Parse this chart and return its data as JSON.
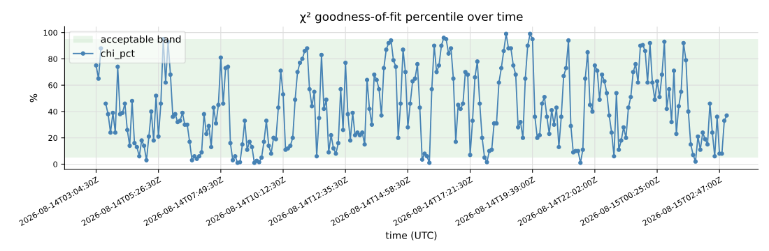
{
  "chart_data": {
    "type": "line",
    "title": "χ² goodness-of-fit percentile over time",
    "xlabel": "time (UTC)",
    "ylabel": "%",
    "categories": [
      "2026-08-14T03:04:30Z",
      null,
      null,
      null,
      null,
      null,
      null,
      null,
      null,
      null,
      null,
      null,
      null,
      null,
      null,
      null,
      null,
      null,
      null,
      null,
      null,
      null,
      null,
      null,
      null,
      null,
      "2026-08-14T05:26:30Z",
      null,
      null,
      null,
      null,
      null,
      null,
      null,
      null,
      null,
      null,
      null,
      null,
      null,
      null,
      null,
      null,
      null,
      null,
      null,
      null,
      null,
      null,
      null,
      null,
      null,
      "2026-08-14T07:49:30Z",
      null,
      null,
      null,
      null,
      null,
      null,
      null,
      null,
      null,
      null,
      null,
      null,
      null,
      null,
      null,
      null,
      null,
      null,
      null,
      null,
      null,
      null,
      null,
      null,
      null,
      "2026-08-14T10:12:30Z",
      null,
      null,
      null,
      null,
      null,
      null,
      null,
      null,
      null,
      null,
      null,
      null,
      null,
      null,
      null,
      null,
      null,
      null,
      null,
      null,
      null,
      null,
      null,
      null,
      null,
      "2026-08-14T12:35:30Z",
      null,
      null,
      null,
      null,
      null,
      null,
      null,
      null,
      null,
      null,
      null,
      null,
      null,
      null,
      null,
      null,
      null,
      null,
      null,
      null,
      null,
      null,
      null,
      null,
      null,
      "2026-08-14T14:58:30Z",
      null,
      null,
      null,
      null,
      null,
      null,
      null,
      null,
      null,
      null,
      null,
      null,
      null,
      null,
      null,
      null,
      null,
      null,
      null,
      null,
      null,
      null,
      null,
      null,
      null,
      "2026-08-14T17:21:30Z",
      null,
      null,
      null,
      null,
      null,
      null,
      null,
      null,
      null,
      null,
      null,
      null,
      null,
      null,
      null,
      null,
      null,
      null,
      null,
      null,
      null,
      null,
      null,
      null,
      null,
      "2026-08-14T19:39:00Z",
      null,
      null,
      null,
      null,
      null,
      null,
      null,
      null,
      null,
      null,
      null,
      null,
      null,
      null,
      null,
      null,
      null,
      null,
      null,
      null,
      null,
      null,
      null,
      null,
      null,
      "2026-08-14T22:02:00Z",
      null,
      null,
      null,
      null,
      null,
      null,
      null,
      null,
      null,
      null,
      null,
      null,
      null,
      null,
      null,
      null,
      null,
      null,
      null,
      null,
      null,
      null,
      null,
      null,
      null,
      "2026-08-15T00:25:00Z",
      null,
      null,
      null,
      null,
      null,
      null,
      null,
      null,
      null,
      null,
      null,
      null,
      null,
      null,
      null,
      null,
      null,
      null,
      null,
      null,
      null,
      null,
      null,
      null,
      null,
      "2026-08-15T02:47:00Z",
      null,
      null,
      null
    ],
    "series": [
      {
        "name": "chi_pct",
        "color": "#4682b4",
        "values": [
          75,
          65,
          88,
          null,
          46,
          38,
          24,
          39,
          24,
          74,
          38,
          39,
          46,
          26,
          14,
          48,
          16,
          13,
          6,
          18,
          14,
          3,
          21,
          40,
          18,
          52,
          21,
          46,
          95,
          62,
          93,
          68,
          36,
          38,
          32,
          33,
          39,
          30,
          30,
          17,
          3,
          6,
          4,
          6,
          9,
          38,
          23,
          29,
          13,
          43,
          31,
          45,
          81,
          46,
          73,
          74,
          16,
          3,
          6,
          1,
          1.5,
          15,
          33,
          11,
          17,
          13,
          1,
          2.6,
          1.5,
          5,
          17,
          33,
          14,
          8,
          20,
          19,
          43,
          71,
          53,
          11,
          12,
          14,
          20,
          49,
          70,
          77,
          80,
          86,
          88,
          57,
          44,
          55,
          6,
          35,
          83,
          42,
          49,
          9,
          22,
          12,
          8,
          16,
          57,
          26,
          77,
          38,
          18,
          39,
          22,
          24,
          22,
          24,
          15,
          64,
          42,
          30,
          68,
          64,
          57,
          37,
          73,
          87,
          92,
          94,
          79,
          74,
          20,
          46,
          87,
          70,
          28,
          46,
          63,
          65,
          76,
          43,
          3.5,
          8,
          6,
          1,
          57,
          90,
          70,
          75,
          90,
          96,
          95,
          84,
          88,
          65,
          17,
          45,
          42,
          46,
          70,
          68,
          7,
          33,
          66,
          78,
          46,
          20,
          5,
          1.5,
          10,
          11,
          31,
          31,
          62,
          73,
          86,
          99,
          88,
          88,
          75,
          68,
          28,
          32,
          20,
          65,
          90,
          99,
          95,
          36,
          20,
          22,
          46,
          51,
          36,
          23,
          41,
          30,
          43,
          13,
          36,
          67,
          73,
          94,
          29,
          9,
          10,
          10,
          1,
          11,
          65,
          85,
          45,
          40,
          75,
          71,
          49,
          68,
          63,
          54,
          37,
          24,
          6,
          54,
          11,
          18,
          28,
          20,
          43,
          51,
          70,
          76,
          62,
          90,
          90.5,
          86,
          62,
          92,
          62,
          49,
          63,
          51,
          68,
          93,
          42,
          57,
          32,
          71,
          23,
          44,
          55,
          92,
          79,
          40,
          15,
          7,
          2,
          21,
          11,
          24,
          19,
          15,
          46,
          24,
          6,
          36,
          8,
          8,
          33,
          37
        ]
      }
    ],
    "bands": [
      {
        "axis": "y",
        "from": 5,
        "to": 95,
        "label": "acceptable band",
        "color": "#2ca02c"
      }
    ],
    "ylim": [
      -4,
      104.5
    ],
    "yticks": [
      0,
      20,
      40,
      60,
      80,
      100
    ],
    "grid": true,
    "legend": "top left",
    "marker": "circle",
    "line_style": "solid"
  }
}
